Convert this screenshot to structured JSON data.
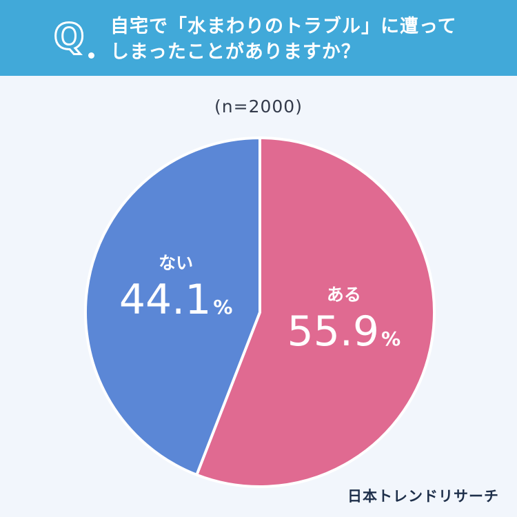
{
  "header": {
    "q_letter": "Q",
    "question_line1": "自宅で「水まわりのトラブル」に遭って",
    "question_line2": "しまったことがありますか？"
  },
  "sample_size": "(n=2000)",
  "credit": "日本トレンドリサーチ",
  "colors": {
    "header": "#41a9d9",
    "aru": "#e06a91",
    "nai": "#5b87d6",
    "background": "#f2f6fc"
  },
  "chart_data": {
    "type": "pie",
    "title": "",
    "start": "12 o'clock, clockwise",
    "slices": [
      {
        "label": "ある",
        "value": 55.9,
        "display": "55.9",
        "unit": "%",
        "color": "#e06a91"
      },
      {
        "label": "ない",
        "value": 44.1,
        "display": "44.1",
        "unit": "%",
        "color": "#5b87d6"
      }
    ]
  }
}
